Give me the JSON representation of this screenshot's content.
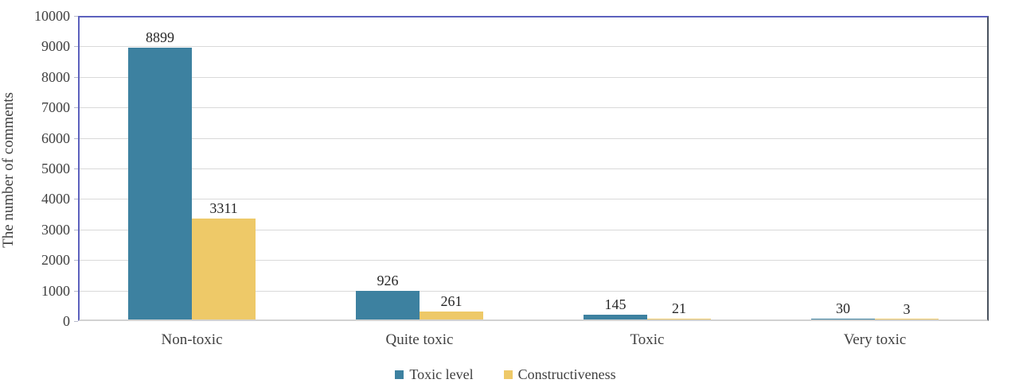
{
  "chart_data": {
    "type": "bar",
    "title": "",
    "xlabel": "",
    "ylabel": "The number of comments",
    "categories": [
      "Non-toxic",
      "Quite toxic",
      "Toxic",
      "Very toxic"
    ],
    "series": [
      {
        "name": "Toxic level",
        "color": "#3d81a0",
        "values": [
          8899,
          926,
          145,
          30
        ]
      },
      {
        "name": "Constructiveness",
        "color": "#eec968",
        "values": [
          3311,
          261,
          21,
          3
        ]
      }
    ],
    "data_labels": [
      [
        "8899",
        "926",
        "145",
        "30"
      ],
      [
        "3311",
        "261",
        "21",
        "3"
      ]
    ],
    "ylim": [
      0,
      10000
    ],
    "yticks": [
      0,
      1000,
      2000,
      3000,
      4000,
      5000,
      6000,
      7000,
      8000,
      9000,
      10000
    ],
    "grid": true,
    "legend_position": "bottom"
  },
  "colors": {
    "series_toxic_level": "#3d81a0",
    "series_constructiveness": "#eec968",
    "plot_border_left_top": "#5c61bd",
    "plot_border_right": "#49525e",
    "gridline": "#d9d9d9",
    "axis_baseline": "#d2d2d2",
    "text": "#404040"
  }
}
